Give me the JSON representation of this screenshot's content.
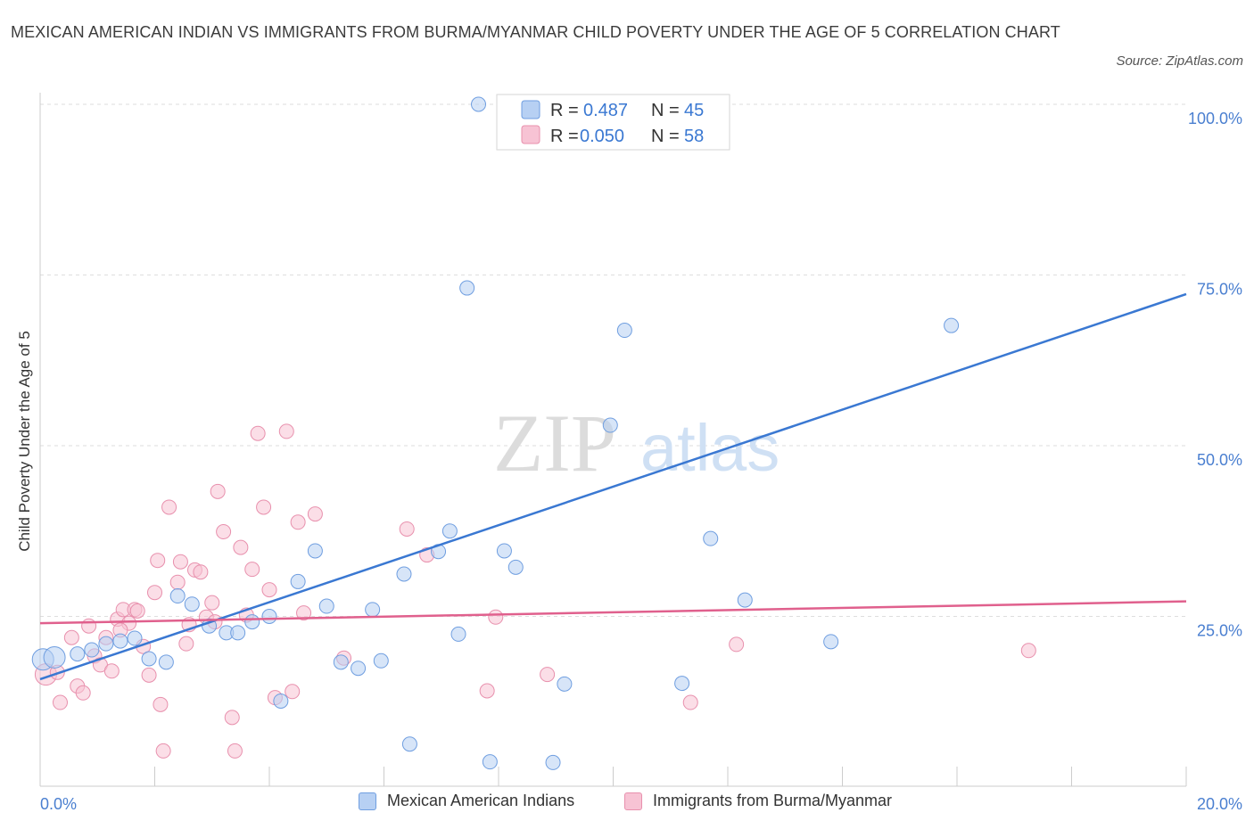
{
  "title": "MEXICAN AMERICAN INDIAN VS IMMIGRANTS FROM BURMA/MYANMAR CHILD POVERTY UNDER THE AGE OF 5 CORRELATION CHART",
  "source": "Source: ZipAtlas.com",
  "watermark": {
    "zip": "ZIP",
    "atlas": "atlas"
  },
  "colors": {
    "blue": "#3a78d2",
    "blue_fill": "#b7d0f3",
    "pink": "#e0608d",
    "pink_fill": "#f7c3d4",
    "axis_text": "#4a7fd0"
  },
  "stats": [
    {
      "r_label": "R =",
      "r_value": "0.487",
      "n_label": "N =",
      "n_value": "45"
    },
    {
      "r_label": "R =",
      "r_value": "0.050",
      "n_label": "N =",
      "n_value": "58"
    }
  ],
  "chart_data": {
    "type": "scatter",
    "ylabel": "Child Poverty Under the Age of 5",
    "xlim": [
      0,
      20
    ],
    "ylim": [
      0,
      100
    ],
    "x_tick_labels": [
      "0.0%",
      "20.0%"
    ],
    "y_tick_labels": [
      "100.0%",
      "75.0%",
      "50.0%",
      "25.0%"
    ],
    "y_ticks": [
      100,
      75,
      50,
      25
    ],
    "grid": true,
    "legend_position": "bottom",
    "series": [
      {
        "name": "Mexican American Indians",
        "color": "#3a78d2",
        "trend": {
          "x": [
            0,
            20
          ],
          "y": [
            15.8,
            72.2
          ]
        },
        "points": [
          [
            0.05,
            18.7
          ],
          [
            0.25,
            19.0
          ],
          [
            0.65,
            19.5
          ],
          [
            0.9,
            20.1
          ],
          [
            1.15,
            21.0
          ],
          [
            1.4,
            21.4
          ],
          [
            1.65,
            21.8
          ],
          [
            1.9,
            18.8
          ],
          [
            2.2,
            18.3
          ],
          [
            2.4,
            28.0
          ],
          [
            2.65,
            26.8
          ],
          [
            2.95,
            23.6
          ],
          [
            3.25,
            22.6
          ],
          [
            3.45,
            22.6
          ],
          [
            3.7,
            24.2
          ],
          [
            4.0,
            25.0
          ],
          [
            4.2,
            12.6
          ],
          [
            4.5,
            30.1
          ],
          [
            4.8,
            34.6
          ],
          [
            5.0,
            26.5
          ],
          [
            5.25,
            18.3
          ],
          [
            5.55,
            17.4
          ],
          [
            5.8,
            26.0
          ],
          [
            5.95,
            18.5
          ],
          [
            6.35,
            31.2
          ],
          [
            6.45,
            6.3
          ],
          [
            6.95,
            34.5
          ],
          [
            7.15,
            37.5
          ],
          [
            7.3,
            22.4
          ],
          [
            7.45,
            73.1
          ],
          [
            7.85,
            3.7
          ],
          [
            8.1,
            34.6
          ],
          [
            8.3,
            32.2
          ],
          [
            8.95,
            3.6
          ],
          [
            9.15,
            15.1
          ],
          [
            10.2,
            66.9
          ],
          [
            10.3,
            100.0
          ],
          [
            11.2,
            15.2
          ],
          [
            11.7,
            36.4
          ],
          [
            12.3,
            27.4
          ],
          [
            13.8,
            21.3
          ],
          [
            15.9,
            67.6
          ],
          [
            9.95,
            53.0
          ],
          [
            7.65,
            100.0
          ],
          [
            9.8,
            100.0
          ]
        ]
      },
      {
        "name": "Immigrants from Burma/Myanmar",
        "color": "#e0608d",
        "trend": {
          "x": [
            0,
            20
          ],
          "y": [
            24.0,
            27.2
          ]
        },
        "points": [
          [
            0.1,
            16.5
          ],
          [
            0.3,
            16.8
          ],
          [
            0.35,
            12.4
          ],
          [
            0.55,
            21.9
          ],
          [
            0.65,
            14.8
          ],
          [
            0.75,
            13.8
          ],
          [
            0.85,
            23.6
          ],
          [
            0.95,
            19.2
          ],
          [
            1.05,
            17.9
          ],
          [
            1.15,
            21.9
          ],
          [
            1.25,
            17.0
          ],
          [
            1.35,
            24.6
          ],
          [
            1.45,
            26.0
          ],
          [
            1.55,
            24.0
          ],
          [
            1.65,
            26.0
          ],
          [
            1.7,
            25.8
          ],
          [
            1.8,
            20.6
          ],
          [
            1.9,
            16.4
          ],
          [
            2.0,
            28.5
          ],
          [
            2.1,
            12.1
          ],
          [
            2.15,
            5.3
          ],
          [
            2.25,
            41.0
          ],
          [
            2.4,
            30.0
          ],
          [
            2.45,
            33.0
          ],
          [
            2.55,
            21.0
          ],
          [
            2.6,
            23.8
          ],
          [
            2.7,
            31.8
          ],
          [
            2.8,
            31.5
          ],
          [
            2.9,
            24.9
          ],
          [
            3.0,
            27.0
          ],
          [
            3.05,
            24.2
          ],
          [
            3.1,
            43.3
          ],
          [
            3.2,
            37.4
          ],
          [
            3.35,
            10.2
          ],
          [
            3.4,
            5.3
          ],
          [
            3.5,
            35.1
          ],
          [
            3.6,
            25.2
          ],
          [
            3.7,
            31.9
          ],
          [
            3.8,
            51.8
          ],
          [
            3.9,
            41.0
          ],
          [
            4.0,
            28.9
          ],
          [
            4.1,
            13.1
          ],
          [
            4.3,
            52.1
          ],
          [
            4.4,
            14.0
          ],
          [
            4.5,
            38.8
          ],
          [
            4.6,
            25.5
          ],
          [
            4.8,
            40.0
          ],
          [
            5.3,
            18.9
          ],
          [
            6.4,
            37.8
          ],
          [
            6.75,
            34.0
          ],
          [
            7.8,
            14.1
          ],
          [
            7.95,
            24.9
          ],
          [
            8.85,
            16.5
          ],
          [
            11.35,
            12.4
          ],
          [
            12.15,
            20.9
          ],
          [
            17.25,
            20.0
          ],
          [
            1.4,
            23.0
          ],
          [
            2.05,
            33.2
          ]
        ]
      }
    ]
  }
}
